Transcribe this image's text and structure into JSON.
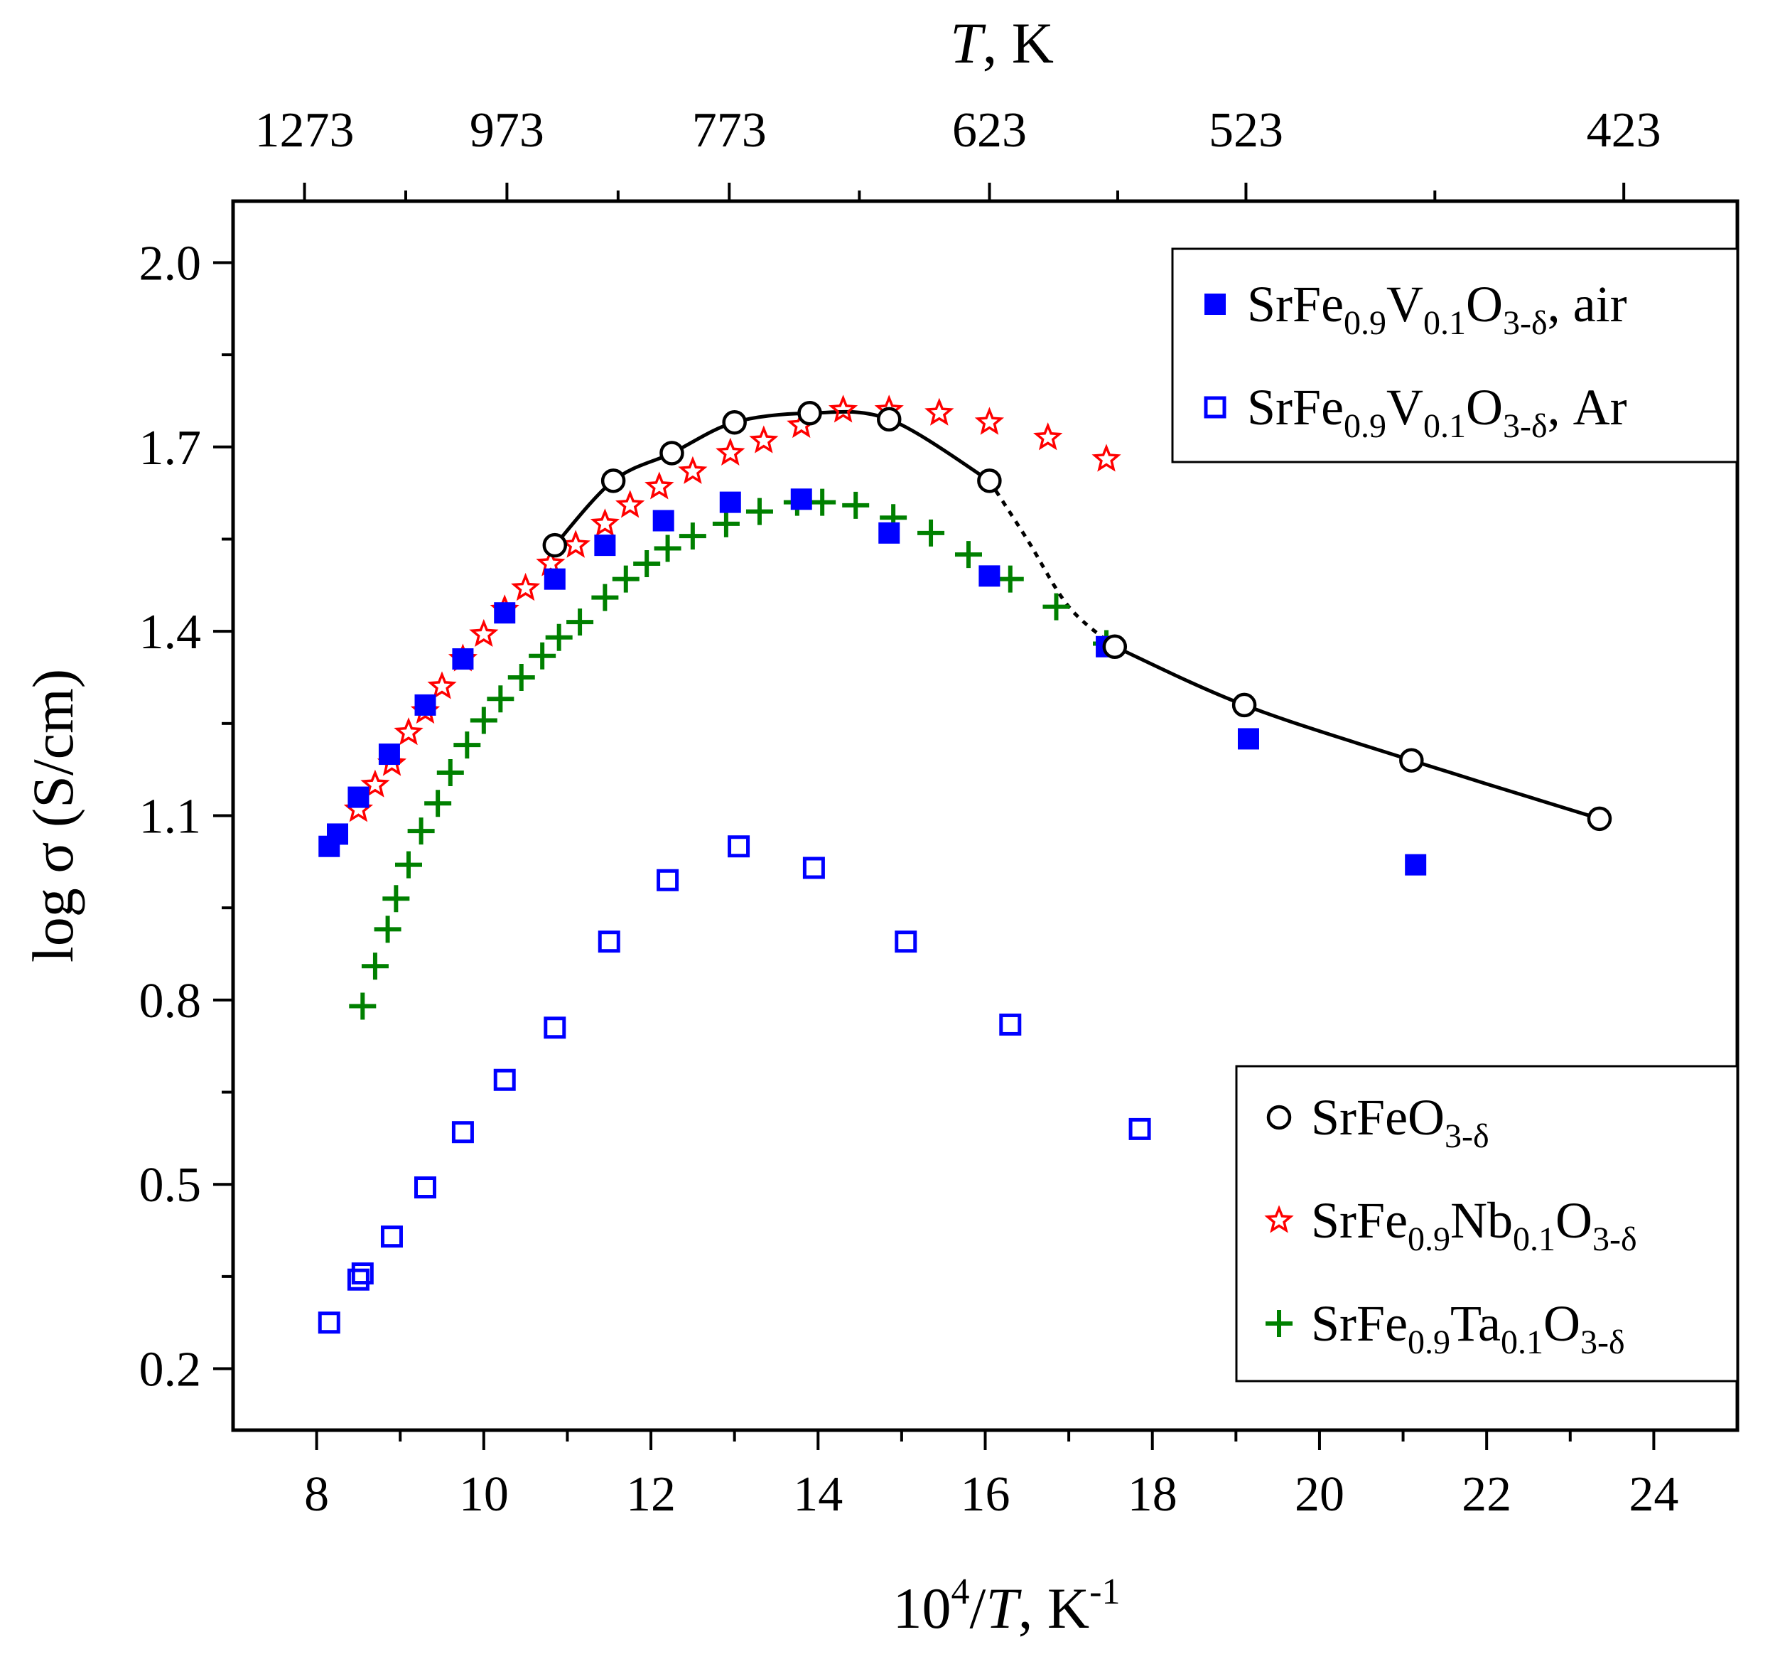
{
  "chart_data": {
    "type": "scatter",
    "x_axis": {
      "label_parts": [
        "10",
        "4",
        "/",
        "T",
        ", K",
        "-1"
      ],
      "ticks": [
        "8",
        "10",
        "12",
        "14",
        "16",
        "18",
        "20",
        "22",
        "24"
      ],
      "range": [
        7,
        25
      ]
    },
    "y_axis": {
      "label": "log σ (S/cm)",
      "ticks": [
        "0.2",
        "0.5",
        "0.8",
        "1.1",
        "1.4",
        "1.7",
        "2.0"
      ],
      "range": [
        0.1,
        2.1
      ]
    },
    "top_axis": {
      "label_parts": [
        "T",
        ", K"
      ],
      "ticks": [
        {
          "label": "1273",
          "x": 7.855
        },
        {
          "label": "973",
          "x": 10.277
        },
        {
          "label": "773",
          "x": 12.937
        },
        {
          "label": "623",
          "x": 16.051
        },
        {
          "label": "523",
          "x": 19.12
        },
        {
          "label": "423",
          "x": 23.641
        }
      ]
    },
    "series": [
      {
        "key": "v_air",
        "name_parts": [
          [
            "SrFe",
            ""
          ],
          [
            "0.9",
            "sub"
          ],
          [
            "V",
            ""
          ],
          [
            "0.1",
            "sub"
          ],
          [
            "O",
            ""
          ],
          [
            "3-δ",
            "sub"
          ],
          [
            ", air",
            ""
          ]
        ],
        "marker": "filled-square",
        "color": "#0000ff",
        "x": [
          8.15,
          8.25,
          8.5,
          8.87,
          9.3,
          9.75,
          10.25,
          10.85,
          11.45,
          12.15,
          12.95,
          13.8,
          14.85,
          16.05,
          17.45,
          19.15,
          21.15
        ],
        "y": [
          1.05,
          1.07,
          1.13,
          1.2,
          1.28,
          1.355,
          1.43,
          1.485,
          1.54,
          1.58,
          1.61,
          1.615,
          1.56,
          1.49,
          1.375,
          1.225,
          1.02
        ]
      },
      {
        "key": "v_ar",
        "name_parts": [
          [
            "SrFe",
            ""
          ],
          [
            "0.9",
            "sub"
          ],
          [
            "V",
            ""
          ],
          [
            "0.1",
            "sub"
          ],
          [
            "O",
            ""
          ],
          [
            "3-δ",
            "sub"
          ],
          [
            ", Ar",
            ""
          ]
        ],
        "marker": "open-square",
        "color": "#0000ff",
        "x": [
          8.15,
          8.5,
          8.55,
          8.9,
          9.3,
          9.75,
          10.25,
          10.85,
          11.5,
          12.2,
          13.05,
          13.95,
          15.05,
          16.3,
          17.85
        ],
        "y": [
          0.275,
          0.345,
          0.355,
          0.415,
          0.495,
          0.585,
          0.67,
          0.755,
          0.895,
          0.995,
          1.05,
          1.015,
          0.895,
          0.76,
          0.59
        ]
      },
      {
        "key": "srfeo3",
        "name_parts": [
          [
            "SrFeO",
            ""
          ],
          [
            "3-δ",
            "sub"
          ]
        ],
        "marker": "open-circle",
        "color": "#000000",
        "x": [
          10.85,
          11.55,
          12.25,
          13.0,
          13.9,
          14.85,
          16.05,
          17.55,
          19.1,
          21.1,
          23.35
        ],
        "y": [
          1.54,
          1.645,
          1.69,
          1.74,
          1.755,
          1.745,
          1.645,
          1.375,
          1.28,
          1.19,
          1.095
        ]
      },
      {
        "key": "nb",
        "name_parts": [
          [
            "SrFe",
            ""
          ],
          [
            "0.9",
            "sub"
          ],
          [
            "Nb",
            ""
          ],
          [
            "0.1",
            "sub"
          ],
          [
            "O",
            ""
          ],
          [
            "3-δ",
            "sub"
          ]
        ],
        "marker": "star",
        "color": "#ff0000",
        "x": [
          8.5,
          8.7,
          8.9,
          9.1,
          9.3,
          9.5,
          9.75,
          10.0,
          10.25,
          10.5,
          10.8,
          11.1,
          11.45,
          11.75,
          12.1,
          12.5,
          12.95,
          13.35,
          13.8,
          14.3,
          14.85,
          15.45,
          16.05,
          16.75,
          17.45
        ],
        "y": [
          1.11,
          1.15,
          1.185,
          1.235,
          1.27,
          1.31,
          1.355,
          1.395,
          1.435,
          1.47,
          1.51,
          1.54,
          1.575,
          1.605,
          1.635,
          1.66,
          1.69,
          1.71,
          1.735,
          1.76,
          1.76,
          1.755,
          1.74,
          1.715,
          1.68
        ]
      },
      {
        "key": "ta",
        "name_parts": [
          [
            "SrFe",
            ""
          ],
          [
            "0.9",
            "sub"
          ],
          [
            "Ta",
            ""
          ],
          [
            "0.1",
            "sub"
          ],
          [
            "O",
            ""
          ],
          [
            "3-δ",
            "sub"
          ]
        ],
        "marker": "plus",
        "color": "#008000",
        "x": [
          8.55,
          8.7,
          8.85,
          8.95,
          9.1,
          9.25,
          9.45,
          9.6,
          9.8,
          10.0,
          10.2,
          10.45,
          10.7,
          10.9,
          11.15,
          11.45,
          11.7,
          11.95,
          12.2,
          12.5,
          12.9,
          13.3,
          13.75,
          14.05,
          14.45,
          14.9,
          15.35,
          15.8,
          16.3,
          16.85,
          17.45
        ],
        "y": [
          0.79,
          0.855,
          0.915,
          0.965,
          1.02,
          1.075,
          1.12,
          1.17,
          1.215,
          1.255,
          1.29,
          1.325,
          1.36,
          1.39,
          1.415,
          1.455,
          1.485,
          1.51,
          1.535,
          1.555,
          1.575,
          1.595,
          1.61,
          1.61,
          1.605,
          1.585,
          1.56,
          1.525,
          1.485,
          1.44,
          1.38
        ]
      }
    ],
    "fit_line": {
      "series": "srfeo3",
      "color": "#000000",
      "solid_upper": {
        "x": [
          10.85,
          11.55,
          12.25,
          13.0,
          13.9,
          14.85,
          16.05
        ],
        "y": [
          1.54,
          1.645,
          1.69,
          1.74,
          1.755,
          1.745,
          1.645
        ]
      },
      "dotted": {
        "x": [
          16.05,
          16.5,
          17.0,
          17.55
        ],
        "y": [
          1.645,
          1.55,
          1.44,
          1.375
        ]
      },
      "solid_lower": {
        "x": [
          17.55,
          19.1,
          21.1,
          23.35
        ],
        "y": [
          1.375,
          1.28,
          1.19,
          1.095
        ]
      }
    },
    "legends": [
      {
        "location": "top-right",
        "series": [
          "v_air",
          "v_ar"
        ]
      },
      {
        "location": "bottom-right",
        "series": [
          "srfeo3",
          "nb",
          "ta"
        ]
      }
    ]
  }
}
